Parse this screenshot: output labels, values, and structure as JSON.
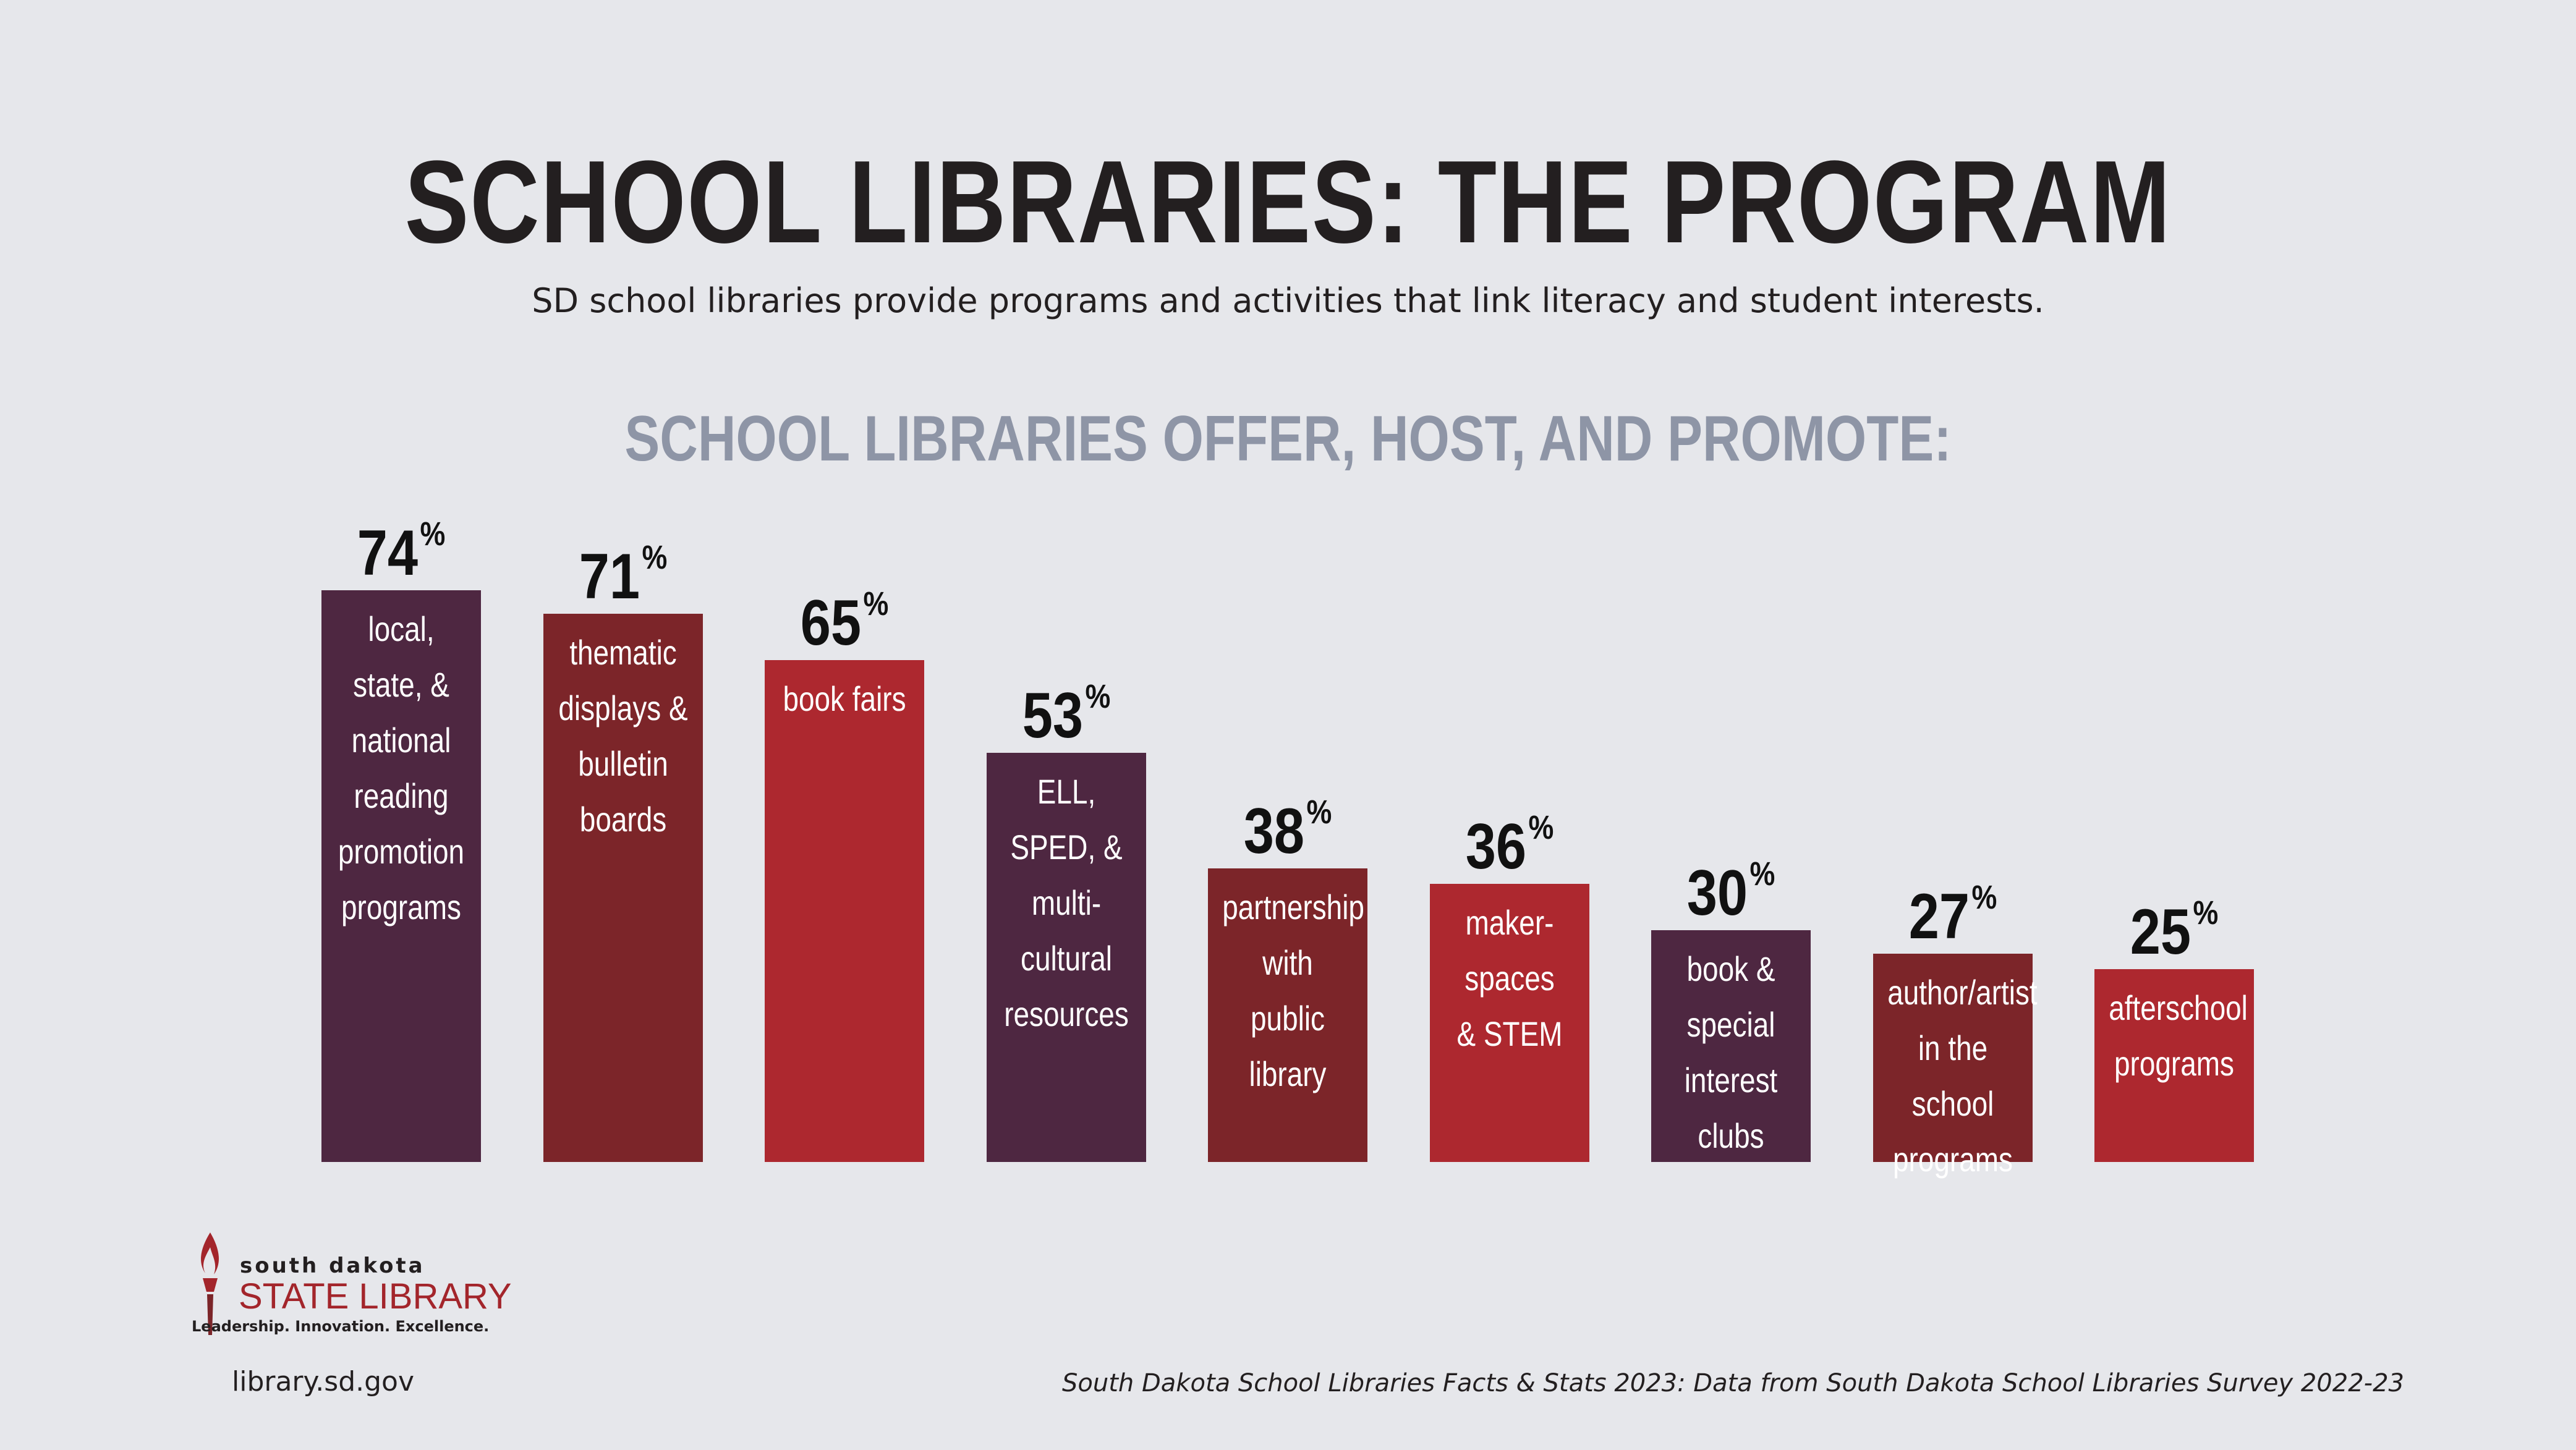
{
  "title": "SCHOOL LIBRARIES: THE PROGRAM",
  "subtitle": "SD school libraries provide programs and activities that link literacy and student interests.",
  "chart_heading": "SCHOOL LIBRARIES OFFER, HOST, AND PROMOTE:",
  "percent_symbol": "%",
  "colors": {
    "plum": "#4e2741",
    "maroon": "#7c2529",
    "red": "#ad282f",
    "background": "#e6e7eb"
  },
  "chart_data": {
    "type": "bar",
    "categories": [
      "local,\nstate, &\nnational\nreading\npromotion\nprograms",
      "thematic\ndisplays &\nbulletin\nboards",
      "book fairs",
      "ELL,\nSPED, &\nmulti-\ncultural\nresources",
      "partnership\nwith\npublic\nlibrary",
      "maker-\nspaces\n& STEM",
      "book &\nspecial\ninterest\nclubs",
      "author/artist\nin the school\nprograms",
      "afterschool\nprograms"
    ],
    "values": [
      74,
      71,
      65,
      53,
      38,
      36,
      30,
      27,
      25
    ],
    "value_labels": [
      "74",
      "71",
      "65",
      "53",
      "38",
      "36",
      "30",
      "27",
      "25"
    ],
    "bar_colors": [
      "#4e2741",
      "#7c2529",
      "#ad282f",
      "#4e2741",
      "#7c2529",
      "#ad282f",
      "#4e2741",
      "#7c2529",
      "#ad282f"
    ],
    "unit": "%",
    "ylim": [
      0,
      100
    ],
    "grid": false,
    "legend": "none"
  },
  "logo": {
    "top_text": "south dakota",
    "main_text": "STATE LIBRARY",
    "tagline": "Leadership. Innovation. Excellence."
  },
  "footer": {
    "website": "library.sd.gov",
    "source": "South Dakota School Libraries Facts & Stats 2023: Data from South Dakota School Libraries Survey 2022-23"
  }
}
